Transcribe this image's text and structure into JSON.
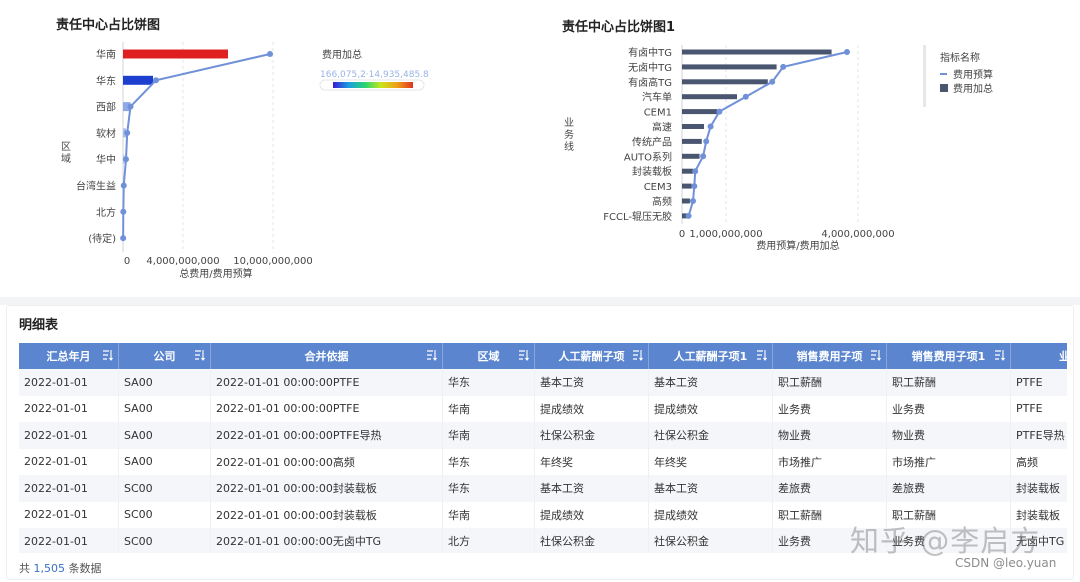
{
  "chart1": {
    "title": "责任中心占比饼图",
    "y_label": "区域",
    "x_label": "总费用/费用预算",
    "x_ticks": [
      "0",
      "4,000,000,000",
      "10,000,000,000"
    ],
    "legend_title": "费用加总",
    "legend_range_text": "166,075,2·14,935,485.8"
  },
  "chart2": {
    "title": "责任中心占比饼图1",
    "y_label": "业务线",
    "x_label": "费用预算/费用加总",
    "x_ticks": [
      "0",
      "1,000,000,000",
      "4,000,000,000"
    ],
    "legend_title": "指标名称",
    "legend_items": [
      "费用预算",
      "费用加总"
    ]
  },
  "chart_data": [
    {
      "type": "bar",
      "title": "责任中心占比饼图",
      "ylabel": "区域",
      "xlabel": "总费用/费用预算",
      "categories": [
        "华南",
        "华东",
        "西部",
        "软材",
        "华中",
        "台湾生益",
        "北方",
        "(待定)"
      ],
      "series": [
        {
          "name": "费用加总",
          "values": [
            7000000000,
            2000000000,
            500000000,
            200000000,
            100000000,
            30000000,
            10000000,
            5000000
          ]
        },
        {
          "name": "费用预算",
          "values": [
            9800000000,
            2200000000,
            500000000,
            280000000,
            200000000,
            50000000,
            20000000,
            10000000
          ]
        }
      ],
      "color_scale": {
        "min": "166,075,2",
        "max": "14,935,485.8",
        "colors": [
          "#3a1ad6",
          "#1aa0e0",
          "#27d470",
          "#c8e61a",
          "#f0a018",
          "#e03020"
        ]
      },
      "bar_colors": [
        "#e02020",
        "#1d3fd0",
        "#8ea8e8",
        "#a8bdf0",
        "#b4c6f2",
        "#c2d0f5",
        "#ccd8f7",
        "#d5def8"
      ],
      "xlim": [
        0,
        10500000000
      ],
      "grid": true
    },
    {
      "type": "bar",
      "title": "责任中心占比饼图1",
      "ylabel": "业务线",
      "xlabel": "费用预算/费用加总",
      "categories": [
        "有卤中TG",
        "无卤中TG",
        "有卤高TG",
        "汽车单",
        "CEM1",
        "高速",
        "传统产品",
        "AUTO系列",
        "封装载板",
        "CEM3",
        "高频",
        "FCCL-辊压无胶"
      ],
      "series": [
        {
          "name": "费用加总",
          "values": [
            3400000000,
            2150000000,
            1950000000,
            1250000000,
            800000000,
            500000000,
            450000000,
            400000000,
            250000000,
            220000000,
            180000000,
            150000000
          ]
        },
        {
          "name": "费用预算",
          "values": [
            3750000000,
            2300000000,
            2050000000,
            1450000000,
            850000000,
            650000000,
            550000000,
            480000000,
            300000000,
            280000000,
            250000000,
            150000000
          ]
        }
      ],
      "xlim": [
        0,
        4300000000
      ],
      "legend": "top-right",
      "grid": true
    }
  ],
  "table": {
    "title": "明细表",
    "columns": [
      "汇总年月",
      "公司",
      "合并依据",
      "区域",
      "人工薪酬子项",
      "人工薪酬子项1",
      "销售费用子项",
      "销售费用子项1",
      "业"
    ],
    "rows": [
      [
        "2022-01-01",
        "SA00",
        "2022-01-01 00:00:00PTFE",
        "华东",
        "基本工资",
        "基本工资",
        "职工薪酬",
        "职工薪酬",
        "PTFE"
      ],
      [
        "2022-01-01",
        "SA00",
        "2022-01-01 00:00:00PTFE",
        "华南",
        "提成绩效",
        "提成绩效",
        "业务费",
        "业务费",
        "PTFE"
      ],
      [
        "2022-01-01",
        "SA00",
        "2022-01-01 00:00:00PTFE导热",
        "华南",
        "社保公积金",
        "社保公积金",
        "物业费",
        "物业费",
        "PTFE导热"
      ],
      [
        "2022-01-01",
        "SA00",
        "2022-01-01 00:00:00高频",
        "华东",
        "年终奖",
        "年终奖",
        "市场推广",
        "市场推广",
        "高频"
      ],
      [
        "2022-01-01",
        "SC00",
        "2022-01-01 00:00:00封装载板",
        "华东",
        "基本工资",
        "基本工资",
        "差旅费",
        "差旅费",
        "封装载板"
      ],
      [
        "2022-01-01",
        "SC00",
        "2022-01-01 00:00:00封装载板",
        "华南",
        "提成绩效",
        "提成绩效",
        "职工薪酬",
        "职工薪酬",
        "封装载板"
      ],
      [
        "2022-01-01",
        "SC00",
        "2022-01-01 00:00:00无卤中TG",
        "北方",
        "社保公积金",
        "社保公积金",
        "业务费",
        "业务费",
        "无卤中TG"
      ]
    ],
    "footer_prefix": "共",
    "footer_count": "1,505",
    "footer_suffix": "条数据",
    "header_color": "#5b86cf"
  },
  "watermarks": {
    "zhihu": "知乎 @李启方",
    "csdn": "CSDN @leo.yuan"
  }
}
